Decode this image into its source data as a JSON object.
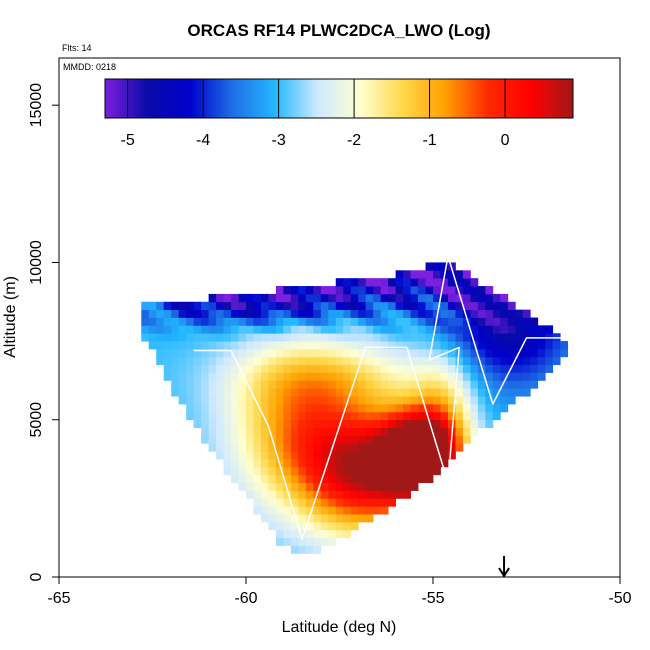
{
  "chart_data": {
    "type": "heatmap",
    "title": "ORCAS RF14 PLWC2DCA_LWO (Log)",
    "annotations": {
      "flights": "Flts: 14",
      "date": "MMDD: 0218"
    },
    "xlabel": "Latitude (deg N)",
    "ylabel": "Altitude (m)",
    "xlim": [
      -65,
      -50
    ],
    "ylim": [
      0,
      16500
    ],
    "x_ticks": [
      -65,
      -60,
      -55,
      -50
    ],
    "y_ticks": [
      0,
      5000,
      10000,
      15000
    ],
    "x_tick_labels": [
      "-65",
      "-60",
      "-55",
      "-50"
    ],
    "y_tick_labels": [
      "0",
      "5000",
      "10000",
      "15000"
    ],
    "grid": false,
    "colorbar": {
      "placement": "top-inside",
      "range": [
        -5.3,
        0.9
      ],
      "ticks": [
        -5,
        -4,
        -3,
        -2,
        -1,
        0
      ],
      "tick_labels": [
        "-5",
        "-4",
        "-3",
        "-2",
        "-1",
        "0"
      ],
      "colors": [
        "#7b1fe0",
        "#0a0aa8",
        "#0000cc",
        "#1e6fe6",
        "#22b8ff",
        "#cfe9ff",
        "#ffffd0",
        "#ffd84a",
        "#ffa000",
        "#ff2a00",
        "#ff0000",
        "#a01818"
      ]
    },
    "colors": {
      "flight_track": "#ffffff",
      "marker": "#000000"
    },
    "marker": {
      "type": "arrow-down",
      "x": -53.1
    },
    "flight_track": [
      [
        -61.4,
        7200
      ],
      [
        -60.4,
        7200
      ],
      [
        -59.4,
        4800
      ],
      [
        -58.5,
        1200
      ],
      [
        -57.0,
        6600
      ],
      [
        -56.8,
        7300
      ],
      [
        -55.7,
        7300
      ],
      [
        -54.6,
        3000
      ],
      [
        -54.3,
        7300
      ],
      [
        -55.1,
        6900
      ],
      [
        -54.6,
        10200
      ],
      [
        -53.4,
        5500
      ],
      [
        -52.5,
        7600
      ],
      [
        -51.2,
        7600
      ]
    ],
    "field": {
      "region_polygon": [
        [
          -62.9,
          8600
        ],
        [
          -56.0,
          9600
        ],
        [
          -54.6,
          10100
        ],
        [
          -53.0,
          8800
        ],
        [
          -51.3,
          7400
        ],
        [
          -52.1,
          6200
        ],
        [
          -54.2,
          4200
        ],
        [
          -55.0,
          3200
        ],
        [
          -56.0,
          2300
        ],
        [
          -58.0,
          800
        ],
        [
          -59.0,
          900
        ],
        [
          -61.5,
          5000
        ],
        [
          -62.8,
          7800
        ]
      ],
      "background_value": -3.0,
      "blobs": [
        {
          "lat": -55.3,
          "alt": 3900,
          "sx": 0.7,
          "sy": 900,
          "amp": 4.5
        },
        {
          "lat": -56.7,
          "alt": 3300,
          "sx": 1.3,
          "sy": 1400,
          "amp": 3.3
        },
        {
          "lat": -58.6,
          "alt": 4800,
          "sx": 1.3,
          "sy": 1700,
          "amp": 2.0
        },
        {
          "lat": -54.7,
          "alt": 5500,
          "sx": 0.6,
          "sy": 1200,
          "amp": 1.2
        },
        {
          "lat": -57.5,
          "alt": 6400,
          "sx": 2.0,
          "sy": 800,
          "amp": 0.9
        },
        {
          "lat": -57.0,
          "alt": 9800,
          "sx": 3.5,
          "sy": 800,
          "amp": -2.0
        },
        {
          "lat": -53.0,
          "alt": 8300,
          "sx": 1.2,
          "sy": 1600,
          "amp": -1.8
        },
        {
          "lat": -60.0,
          "alt": 8700,
          "sx": 2.0,
          "sy": 500,
          "amp": -1.2
        }
      ],
      "stripes": {
        "from_alt": 7500,
        "amplitude": 0.8,
        "freq_lat": 1.3,
        "freq_alt": 0.0016
      }
    }
  }
}
